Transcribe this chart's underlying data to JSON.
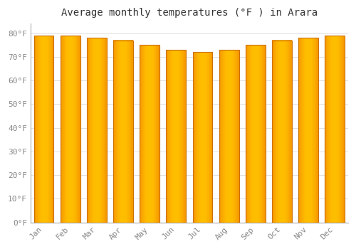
{
  "title": "Average monthly temperatures (°F ) in Arara",
  "months": [
    "Jan",
    "Feb",
    "Mar",
    "Apr",
    "May",
    "Jun",
    "Jul",
    "Aug",
    "Sep",
    "Oct",
    "Nov",
    "Dec"
  ],
  "values": [
    79,
    79,
    78,
    77,
    75,
    73,
    72,
    73,
    75,
    77,
    78,
    79
  ],
  "bar_color_center": "#FFB800",
  "bar_color_edge": "#F07800",
  "bar_edge_color": "#CC7000",
  "background_color": "#FFFFFF",
  "grid_color": "#E0E0E0",
  "title_fontsize": 10,
  "tick_fontsize": 8,
  "ytick_labels": [
    "0°F",
    "10°F",
    "20°F",
    "30°F",
    "40°F",
    "50°F",
    "60°F",
    "70°F",
    "80°F"
  ],
  "ytick_values": [
    0,
    10,
    20,
    30,
    40,
    50,
    60,
    70,
    80
  ],
  "ylim": [
    0,
    84
  ],
  "font_color": "#888888"
}
